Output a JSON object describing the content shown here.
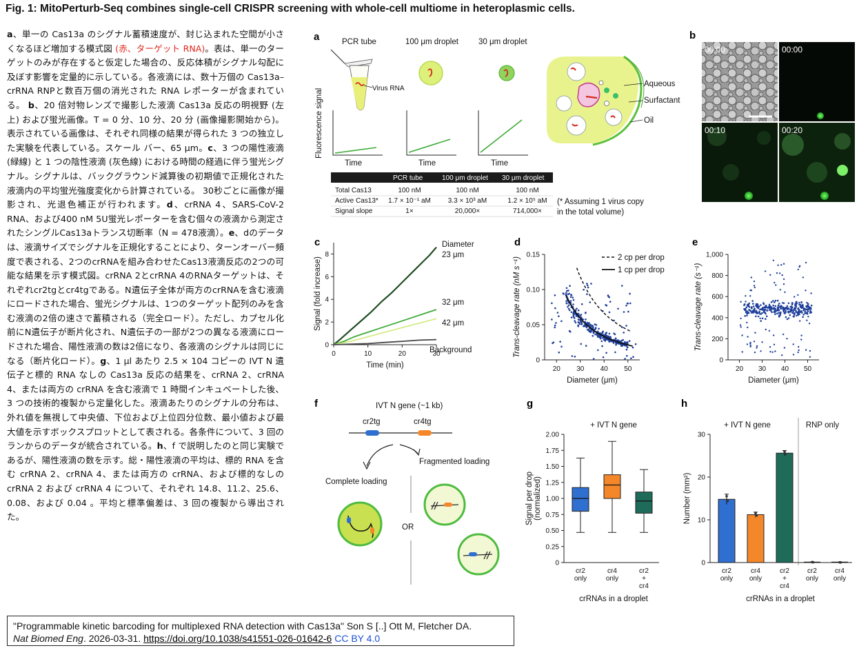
{
  "header": {
    "title": "Fig. 1: MitoPerturb-Seq combines single-cell CRISPR screening with whole-cell multiome in heteroplasmic cells."
  },
  "legend": {
    "a_label": "a",
    "a_text1": "、単一の Cas13a のシグナル蓄積速度が、封じ込まれた空間が小さくなるほど増加する模式図 ",
    "a_red": "(赤、ターゲット RNA)",
    "a_text2": "。表は、単一のターゲットのみが存在すると仮定した場合の、反応体積がシグナル勾配に及ぼす影響を定量的に示している。各液滴には、数十万個の Cas13a–crRNA RNPと数百万個の消光された RNA レポーターが含まれている。",
    "b_label": "b",
    "b_text": "、20 倍対物レンズで撮影した液滴 Cas13a 反応の明視野 (左上) および蛍光画像。T = 0 分、10 分、20 分 (画像撮影開始から)。表示されている画像は、それぞれ同様の結果が得られた 3 つの独立した実験を代表している。スケール バー、65 μm。",
    "c_label": "c",
    "c_text": "、3 つの陽性液滴 (緑線) と 1 つの陰性液滴 (灰色線) における時間の経過に伴う蛍光シグナル。シグナルは、バックグラウンド減算後の初期値で正規化された液滴内の平均蛍光強度変化から計算されている。 30秒ごとに画像が撮影され、光退色補正が行われます。",
    "d_label": "d",
    "d_text": "、crRNA 4、SARS-CoV-2 RNA、および400 nM 5U蛍光レポーターを含む個々の液滴から測定されたシングルCas13aトランス切断率（N = 478液滴）。",
    "e_label": "e",
    "e_text": "、dのデータは、液滴サイズでシグナルを正規化することにより、ターンオーバー頻度で表される、2つのcrRNAを組み合わせたCas13液滴反応の2つの可能な結果を示す模式図。crRNA 2とcrRNA 4のRNAターゲットは、それぞれcr2tgとcr4tgである。N遺伝子全体が両方のcrRNAを含む液滴にロードされた場合、蛍光シグナルは、1つのターゲット配列のみを含む液滴の2倍の速さで蓄積される（完全ロード）。ただし、カプセル化前にN遺伝子が断片化され、N遺伝子の一部が2つの異なる液滴にロードされた場合、陽性液滴の数は2倍になり、各液滴のシグナルは同じになる（断片化ロード）。",
    "g_label": "g",
    "g_text": "、1 μl あたり 2.5 × 104 コピーの IVT N 遺伝子と標的 RNA なしの Cas13a 反応の結果を、crRNA 2、crRNA 4、または両方の crRNA を含む液滴で 1 時間インキュベートした後、3 つの技術的複製から定量化した。液滴あたりのシグナルの分布は、外れ値を無視して中央値、下位および上位四分位数、最小値および最大値を示すボックスプロットとして表される。各条件について、3 回のランからのデータが統合されている。",
    "h_label": "h",
    "h_text": "、f で説明したのと同じ実験であるが、陽性液滴の数を示す。総・陽性液滴の平均は、標的 RNA を含む crRNA 2、crRNA 4、または両方の crRNA、および標的なしの crRNA 2 および crRNA 4 について、それぞれ 14.8、11.2、25.6、0.08、および 0.04 。平均と標準偏差は、3 回の複製から導出された。"
  },
  "citation": {
    "line1": "\"Programmable kinetic barcoding for multiplexed RNA detection with Cas13a\" Son S [..] Ott M, Fletcher DA.",
    "journal": "Nat Biomed Eng",
    "date": ". 2026-03-31. ",
    "doi": "https://doi.org/10.1038/s41551-026-01642-6",
    "license": " CC BY 4.0"
  },
  "panel_a": {
    "label": "a",
    "col_titles": [
      "PCR tube",
      "100 μm droplet",
      "30 μm droplet"
    ],
    "virus_label": "Virus RNA",
    "ylabel": "Fluorescence signal",
    "xlabel": "Time",
    "droplet_labels": [
      "Aqueous",
      "Surfactant",
      "Oil"
    ],
    "table_headers": [
      "",
      "PCR tube",
      "100 μm droplet",
      "30 μm droplet"
    ],
    "table_rows": [
      [
        "Total Cas13",
        "100 nM",
        "100 nM",
        "100 nM"
      ],
      [
        "Active Cas13*",
        "1.7 × 10⁻¹ aM",
        "3.3 × 10³ aM",
        "1.2 × 10⁵ aM"
      ],
      [
        "Signal slope",
        "1×",
        "20,000×",
        "714,000×"
      ]
    ],
    "footnote1": "(* Assuming 1 virus copy",
    "footnote2": "in the total volume)"
  },
  "panel_b": {
    "label": "b",
    "timestamps": [
      "00:00",
      "00:00",
      "00:10",
      "00:20"
    ]
  },
  "panel_f": {
    "label": "f",
    "gene_label": "IVT N gene (~1 kb)",
    "cr2": "cr2tg",
    "cr4": "cr4tg",
    "complete": "Complete loading",
    "fragmented": "Fragmented loading",
    "or": "OR"
  },
  "colors": {
    "dark_green": "#1e4d22",
    "mid_green": "#3daa36",
    "light_green": "#c9e87a",
    "gray": "#444444",
    "blue_pts": "#1f3f9a",
    "cr2_blue": "#2f6fd0",
    "cr4_orange": "#f5872b",
    "both_teal": "#1f6b5a",
    "red": "#e0251b"
  },
  "chart_data": [
    {
      "panel": "c",
      "type": "line",
      "ylabel": "Signal (fold increase)",
      "xlabel": "Time (min)",
      "xlim": [
        0,
        30
      ],
      "ylim": [
        0,
        9
      ],
      "xticks": [
        0,
        10,
        20,
        30
      ],
      "yticks": [
        0,
        2,
        4,
        6,
        8
      ],
      "legend_title": "Diameter",
      "series": [
        {
          "name": "23 μm",
          "color": "#1e4d22",
          "x": [
            0,
            2,
            5,
            8,
            11,
            14,
            17,
            20,
            23,
            26,
            28,
            30
          ],
          "y": [
            0,
            0.5,
            1.3,
            2.1,
            2.9,
            3.8,
            4.6,
            5.5,
            6.4,
            7.3,
            7.9,
            8.6
          ]
        },
        {
          "name": "32 μm",
          "color": "#3daa36",
          "x": [
            0,
            3,
            6,
            10,
            14,
            18,
            22,
            26,
            30
          ],
          "y": [
            0,
            0.3,
            0.7,
            1.1,
            1.5,
            1.9,
            2.3,
            2.7,
            3.1
          ]
        },
        {
          "name": "42 μm",
          "color": "#d6eb86",
          "x": [
            0,
            5,
            10,
            15,
            20,
            25,
            30
          ],
          "y": [
            0,
            0.3,
            0.7,
            1.1,
            1.5,
            1.9,
            2.3
          ]
        },
        {
          "name": "Background",
          "color": "#444444",
          "x": [
            0,
            5,
            10,
            15,
            20,
            25,
            30
          ],
          "y": [
            0,
            0.05,
            0.1,
            0.2,
            0.3,
            0.4,
            0.45
          ]
        }
      ]
    },
    {
      "panel": "d",
      "type": "scatter",
      "ylabel": "Trans-cleavage rate (nM s⁻¹)",
      "xlabel": "Diameter (μm)",
      "xlim": [
        15,
        55
      ],
      "ylim": [
        0,
        0.15
      ],
      "xticks": [
        20,
        30,
        40,
        50
      ],
      "yticks": [
        0,
        0.05,
        0.1,
        0.15
      ],
      "ytick_labels": [
        "0",
        "0.05",
        "0.10",
        "0.15"
      ],
      "curves": [
        {
          "name": "2 cp per drop",
          "style": "dashed"
        },
        {
          "name": "1 cp per drop",
          "style": "solid"
        }
      ],
      "n_points": 478
    },
    {
      "panel": "e",
      "type": "scatter",
      "ylabel": "Trans-cleavage rate (s⁻¹)",
      "xlabel": "Diameter (μm)",
      "xlim": [
        15,
        55
      ],
      "ylim": [
        0,
        1000
      ],
      "xticks": [
        20,
        30,
        40,
        50
      ],
      "yticks": [
        0,
        200,
        400,
        600,
        800,
        1000
      ],
      "ytick_labels": [
        "0",
        "200",
        "400",
        "600",
        "800",
        "1,000"
      ],
      "center_value": 480
    },
    {
      "panel": "g",
      "type": "box",
      "title": "+ IVT N gene",
      "ylabel": "Signal per drop (normalized)",
      "xlabel": "crRNAs in a droplet",
      "ylim": [
        0,
        2.0
      ],
      "yticks": [
        0,
        0.25,
        0.5,
        0.75,
        1.0,
        1.25,
        1.5,
        1.75,
        2.0
      ],
      "ytick_labels": [
        "0",
        "0.25",
        "0.50",
        "0.75",
        "1.00",
        "1.25",
        "1.50",
        "1.75",
        "2.00"
      ],
      "categories": [
        "cr2\nonly",
        "cr4\nonly",
        "cr2\n+\ncr4"
      ],
      "boxes": [
        {
          "min": 0.47,
          "q1": 0.8,
          "median": 1.0,
          "q3": 1.17,
          "max": 1.63,
          "color": "#2f6fd0"
        },
        {
          "min": 0.47,
          "q1": 1.0,
          "median": 1.21,
          "q3": 1.37,
          "max": 1.89,
          "color": "#f5872b"
        },
        {
          "min": 0.47,
          "q1": 0.77,
          "median": 0.96,
          "q3": 1.1,
          "max": 1.45,
          "color": "#1f6b5a"
        }
      ]
    },
    {
      "panel": "h",
      "type": "bar",
      "group_titles": [
        "+ IVT N gene",
        "RNP only"
      ],
      "ylabel": "Number (mm²)",
      "xlabel": "crRNAs in a droplet",
      "ylim": [
        0,
        30
      ],
      "yticks": [
        0,
        10,
        20,
        30
      ],
      "categories": [
        "cr2\nonly",
        "cr4\nonly",
        "cr2\n+\ncr4",
        "cr2\nonly",
        "cr4\nonly"
      ],
      "values": [
        14.8,
        11.2,
        25.6,
        0.08,
        0.04
      ],
      "errors": [
        1.2,
        0.6,
        0.6,
        0.05,
        0.03
      ],
      "colors": [
        "#2f6fd0",
        "#f5872b",
        "#1f6b5a",
        "#888888",
        "#888888"
      ]
    }
  ]
}
